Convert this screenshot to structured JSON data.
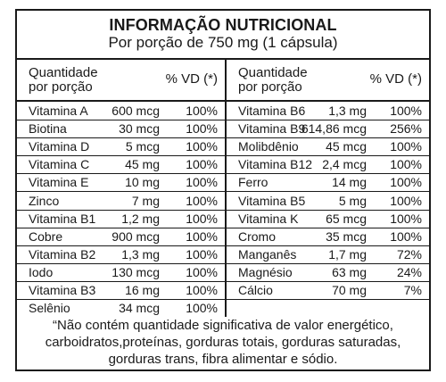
{
  "header": {
    "title": "INFORMAÇÃO NUTRICIONAL",
    "subtitle": "Por porção de 750 mg (1 cápsula)"
  },
  "columns": {
    "qty_line1": "Quantidade",
    "qty_line2": "por porção",
    "vd": "% VD (*)"
  },
  "left_rows": [
    {
      "name": "Vitamina A",
      "amount": "600 mcg",
      "vd": "100%"
    },
    {
      "name": "Biotina",
      "amount": "30 mcg",
      "vd": "100%"
    },
    {
      "name": "Vitamina D",
      "amount": "5 mcg",
      "vd": "100%"
    },
    {
      "name": "Vitamina C",
      "amount": "45 mg",
      "vd": "100%"
    },
    {
      "name": "Vitamina E",
      "amount": "10 mg",
      "vd": "100%"
    },
    {
      "name": "Zinco",
      "amount": "7 mg",
      "vd": "100%"
    },
    {
      "name": "Vitamina B1",
      "amount": "1,2 mg",
      "vd": "100%"
    },
    {
      "name": "Cobre",
      "amount": "900 mcg",
      "vd": "100%"
    },
    {
      "name": "Vitamina B2",
      "amount": "1,3 mg",
      "vd": "100%"
    },
    {
      "name": "Iodo",
      "amount": "130 mcg",
      "vd": "100%"
    },
    {
      "name": "Vitamina B3",
      "amount": "16 mg",
      "vd": "100%"
    },
    {
      "name": "Selênio",
      "amount": "34 mcg",
      "vd": "100%"
    }
  ],
  "right_rows": [
    {
      "name": "Vitamina B6",
      "amount": "1,3 mg",
      "vd": "100%"
    },
    {
      "name": "Vitamina B9",
      "amount": "614,86 mcg",
      "vd": "256%"
    },
    {
      "name": "Molibdênio",
      "amount": "45 mcg",
      "vd": "100%"
    },
    {
      "name": "Vitamina B12",
      "amount": "2,4 mcg",
      "vd": "100%"
    },
    {
      "name": "Ferro",
      "amount": "14 mg",
      "vd": "100%"
    },
    {
      "name": "Vitamina B5",
      "amount": "5 mg",
      "vd": "100%"
    },
    {
      "name": "Vitamina K",
      "amount": "65 mcg",
      "vd": "100%"
    },
    {
      "name": "Cromo",
      "amount": "35 mcg",
      "vd": "100%"
    },
    {
      "name": "Manganês",
      "amount": "1,7 mg",
      "vd": "72%"
    },
    {
      "name": "Magnésio",
      "amount": "63 mg",
      "vd": "24%"
    },
    {
      "name": "Cálcio",
      "amount": "70 mg",
      "vd": "7%"
    },
    {
      "name": "",
      "amount": "",
      "vd": ""
    }
  ],
  "footnote": {
    "line1": "“Não contém quantidade significativa de valor energético,",
    "line2": "carboidratos,proteínas, gorduras totais, gorduras saturadas,",
    "line3": "gorduras trans, fibra alimentar e sódio."
  }
}
